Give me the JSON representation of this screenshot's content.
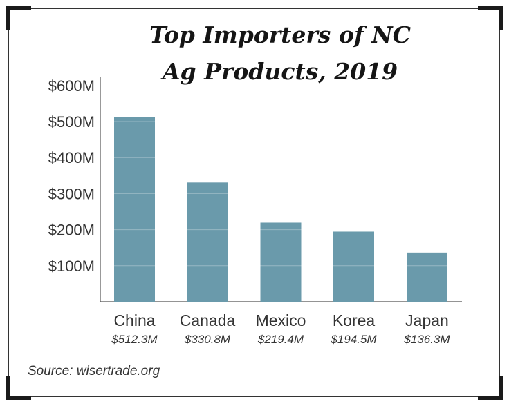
{
  "chart_data": {
    "type": "bar",
    "title_lines": [
      "Top Importers of NC",
      "Ag Products, 2019"
    ],
    "categories": [
      "China",
      "Canada",
      "Mexico",
      "Korea",
      "Japan"
    ],
    "values": [
      512.3,
      330.8,
      219.4,
      194.5,
      136.3
    ],
    "value_labels": [
      "$512.3M",
      "$330.8M",
      "$219.4M",
      "$194.5M",
      "$136.3M"
    ],
    "yticks": [
      100,
      200,
      300,
      400,
      500,
      600
    ],
    "ytick_labels": [
      "$100M",
      "$200M",
      "$300M",
      "$400M",
      "$500M",
      "$600M"
    ],
    "ylim": [
      0,
      620
    ],
    "xlabel": "",
    "ylabel": "",
    "bar_color": "#6a9aab",
    "source": "Source: wisertrade.org"
  }
}
